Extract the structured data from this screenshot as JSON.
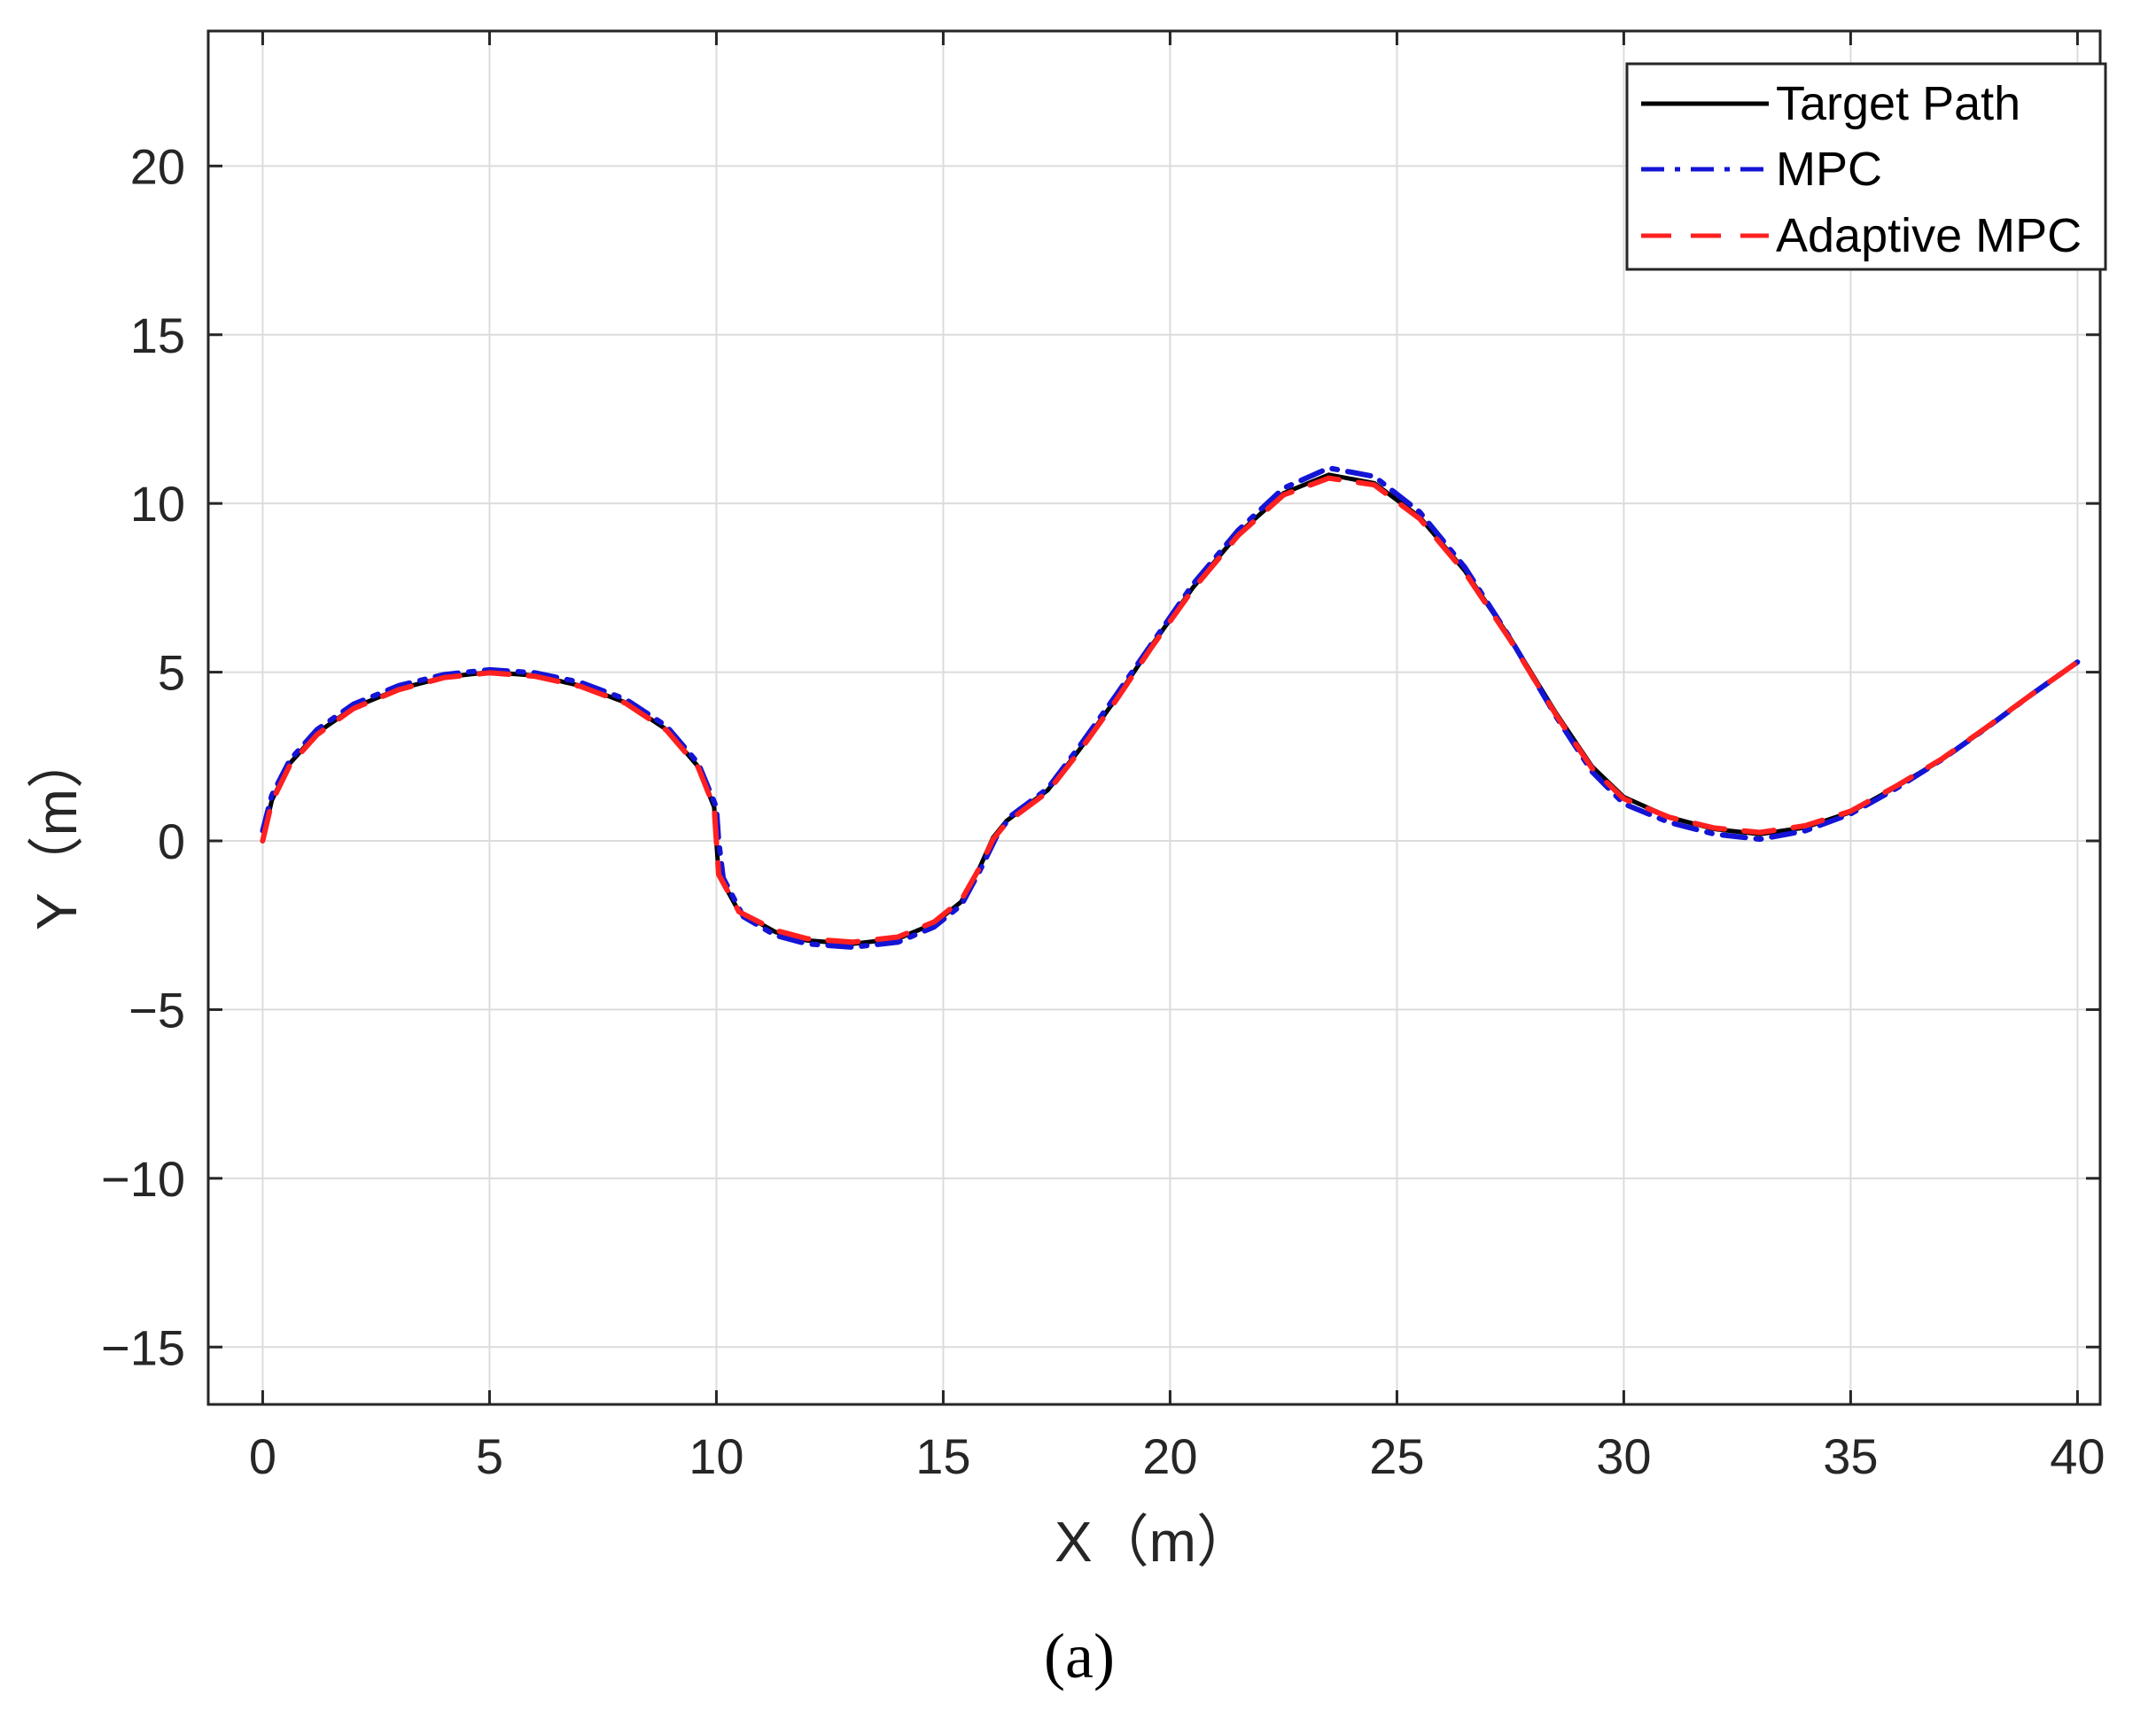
{
  "panel_label": "(a)",
  "colors": {
    "target": "#000000",
    "mpc": "#1414d6",
    "adaptive": "#ff2020",
    "grid": "#dcdcdc",
    "axis": "#262626"
  },
  "chart_data": {
    "type": "line",
    "xlabel": "X（m）",
    "ylabel": "Y（m）",
    "xlim": [
      -1.2,
      40.5
    ],
    "ylim": [
      -16.7,
      24
    ],
    "xticks": [
      0,
      5,
      10,
      15,
      20,
      25,
      30,
      35,
      40
    ],
    "yticks": [
      -15,
      -10,
      -5,
      0,
      5,
      10,
      15,
      20
    ],
    "xtick_labels": [
      "0",
      "5",
      "10",
      "15",
      "20",
      "25",
      "30",
      "35",
      "40"
    ],
    "ytick_labels": [
      "−15",
      "−10",
      "−5",
      "0",
      "5",
      "10",
      "15",
      "20"
    ],
    "grid": true,
    "legend_position": "top-right",
    "series": [
      {
        "name": "Target Path",
        "style": "solid",
        "points": [
          [
            0,
            0
          ],
          [
            0.2,
            1.2
          ],
          [
            0.6,
            2.3
          ],
          [
            1.2,
            3.2
          ],
          [
            2,
            3.95
          ],
          [
            3,
            4.5
          ],
          [
            4,
            4.85
          ],
          [
            5,
            5
          ],
          [
            6,
            4.9
          ],
          [
            7,
            4.6
          ],
          [
            8,
            4.1
          ],
          [
            8.9,
            3.3
          ],
          [
            9.6,
            2.2
          ],
          [
            9.95,
            1
          ],
          [
            10,
            0
          ],
          [
            10.05,
            -1
          ],
          [
            10.5,
            -2.1
          ],
          [
            11.3,
            -2.7
          ],
          [
            12,
            -2.95
          ],
          [
            13,
            -3.05
          ],
          [
            14,
            -2.9
          ],
          [
            14.8,
            -2.45
          ],
          [
            15.4,
            -1.8
          ],
          [
            15.8,
            -0.8
          ],
          [
            16.1,
            0.1
          ],
          [
            16.4,
            0.6
          ],
          [
            17.3,
            1.5
          ],
          [
            18,
            2.7
          ],
          [
            18.8,
            4.2
          ],
          [
            19.6,
            5.8
          ],
          [
            20.5,
            7.5
          ],
          [
            21.5,
            9.1
          ],
          [
            22.5,
            10.3
          ],
          [
            23.5,
            10.85
          ],
          [
            24.5,
            10.6
          ],
          [
            25.5,
            9.6
          ],
          [
            26.5,
            8
          ],
          [
            27.5,
            6
          ],
          [
            28.5,
            3.8
          ],
          [
            29.3,
            2.2
          ],
          [
            30,
            1.3
          ],
          [
            31,
            0.7
          ],
          [
            32,
            0.35
          ],
          [
            33,
            0.2
          ],
          [
            34,
            0.4
          ],
          [
            35,
            0.85
          ],
          [
            36,
            1.6
          ],
          [
            37,
            2.4
          ],
          [
            38,
            3.35
          ],
          [
            39,
            4.35
          ],
          [
            40,
            5.3
          ]
        ]
      },
      {
        "name": "MPC",
        "style": "dashdot",
        "points": [
          [
            0,
            0.3
          ],
          [
            0.2,
            1.35
          ],
          [
            0.6,
            2.4
          ],
          [
            1.2,
            3.3
          ],
          [
            2,
            4.05
          ],
          [
            3,
            4.6
          ],
          [
            4,
            4.93
          ],
          [
            5,
            5.07
          ],
          [
            6,
            4.98
          ],
          [
            7,
            4.7
          ],
          [
            8,
            4.2
          ],
          [
            8.9,
            3.4
          ],
          [
            9.6,
            2.3
          ],
          [
            10,
            1
          ],
          [
            10.05,
            0
          ],
          [
            10.15,
            -1.1
          ],
          [
            10.6,
            -2.25
          ],
          [
            11.3,
            -2.8
          ],
          [
            12,
            -3.05
          ],
          [
            13,
            -3.15
          ],
          [
            14,
            -3
          ],
          [
            14.8,
            -2.55
          ],
          [
            15.4,
            -1.9
          ],
          [
            15.8,
            -0.9
          ],
          [
            16.2,
            0.2
          ],
          [
            16.5,
            0.75
          ],
          [
            17.3,
            1.55
          ],
          [
            18,
            2.8
          ],
          [
            18.8,
            4.3
          ],
          [
            19.6,
            5.85
          ],
          [
            20.5,
            7.6
          ],
          [
            21.5,
            9.2
          ],
          [
            22.5,
            10.45
          ],
          [
            23.5,
            11.05
          ],
          [
            24.5,
            10.8
          ],
          [
            25.5,
            9.75
          ],
          [
            26.5,
            8.1
          ],
          [
            27.5,
            6
          ],
          [
            28.5,
            3.7
          ],
          [
            29.3,
            2.05
          ],
          [
            30,
            1.1
          ],
          [
            31,
            0.55
          ],
          [
            32,
            0.2
          ],
          [
            33,
            0.05
          ],
          [
            34,
            0.3
          ],
          [
            35,
            0.8
          ],
          [
            36,
            1.55
          ],
          [
            37,
            2.4
          ],
          [
            38,
            3.35
          ],
          [
            39,
            4.35
          ],
          [
            40,
            5.3
          ]
        ]
      },
      {
        "name": "Adaptive MPC",
        "style": "dashed",
        "points": [
          [
            0,
            0
          ],
          [
            0.2,
            1.15
          ],
          [
            0.6,
            2.25
          ],
          [
            1.2,
            3.15
          ],
          [
            2,
            3.92
          ],
          [
            3,
            4.48
          ],
          [
            4,
            4.84
          ],
          [
            5,
            4.98
          ],
          [
            6,
            4.88
          ],
          [
            7,
            4.58
          ],
          [
            8,
            4.08
          ],
          [
            8.9,
            3.28
          ],
          [
            9.6,
            2.18
          ],
          [
            9.95,
            1
          ],
          [
            10,
            0
          ],
          [
            10.05,
            -1
          ],
          [
            10.5,
            -2.1
          ],
          [
            11.3,
            -2.65
          ],
          [
            12,
            -2.9
          ],
          [
            13,
            -3
          ],
          [
            14,
            -2.85
          ],
          [
            14.8,
            -2.4
          ],
          [
            15.4,
            -1.75
          ],
          [
            15.8,
            -0.8
          ],
          [
            16.1,
            0.05
          ],
          [
            16.4,
            0.55
          ],
          [
            17.3,
            1.45
          ],
          [
            18,
            2.65
          ],
          [
            18.8,
            4.15
          ],
          [
            19.6,
            5.75
          ],
          [
            20.5,
            7.45
          ],
          [
            21.5,
            9.05
          ],
          [
            22.5,
            10.25
          ],
          [
            23.5,
            10.75
          ],
          [
            24.5,
            10.55
          ],
          [
            25.5,
            9.55
          ],
          [
            26.5,
            7.95
          ],
          [
            27.5,
            5.95
          ],
          [
            28.5,
            3.75
          ],
          [
            29.3,
            2.15
          ],
          [
            30,
            1.25
          ],
          [
            31,
            0.7
          ],
          [
            32,
            0.38
          ],
          [
            33,
            0.25
          ],
          [
            34,
            0.45
          ],
          [
            35,
            0.88
          ],
          [
            36,
            1.62
          ],
          [
            37,
            2.42
          ],
          [
            38,
            3.37
          ],
          [
            39,
            4.35
          ],
          [
            40,
            5.3
          ]
        ]
      }
    ]
  }
}
